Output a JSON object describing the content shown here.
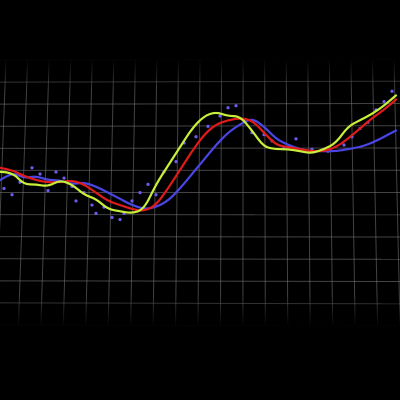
{
  "chart_data": {
    "type": "line",
    "title": "",
    "xlabel": "",
    "ylabel": "",
    "grid": true,
    "legend": "none",
    "xlim": [
      0,
      100
    ],
    "ylim": [
      0,
      100
    ],
    "colors": {
      "background": "#000000",
      "grid": "#7a7a7a",
      "points": "#6a5cf0"
    },
    "series": [
      {
        "color": "#c8f03a",
        "x": [
          0,
          3,
          6,
          9,
          12,
          15,
          18,
          21,
          24,
          27,
          30,
          33,
          36,
          39,
          42,
          45,
          48,
          51,
          54,
          57,
          60,
          63,
          66,
          69,
          72,
          75,
          78,
          81,
          84,
          87,
          90,
          93,
          96,
          99
        ],
        "y": [
          58,
          58,
          52,
          52,
          51,
          54,
          52,
          47,
          45,
          40,
          39,
          38,
          40,
          52,
          61,
          70,
          79,
          85,
          87,
          85,
          85,
          78,
          70,
          69,
          69,
          68,
          67,
          69,
          72,
          80,
          83,
          86,
          90,
          95
        ]
      },
      {
        "color": "#e11a1a",
        "x": [
          0,
          3,
          6,
          9,
          12,
          15,
          18,
          21,
          24,
          27,
          30,
          33,
          36,
          39,
          42,
          45,
          48,
          51,
          54,
          57,
          60,
          63,
          66,
          69,
          72,
          75,
          78,
          81,
          84,
          87,
          90,
          93,
          96,
          99
        ],
        "y": [
          60,
          59,
          56,
          54,
          53,
          53,
          54,
          52,
          48,
          44,
          42,
          40,
          39,
          42,
          50,
          59,
          68,
          76,
          81,
          83,
          84,
          83,
          77,
          71,
          70,
          69,
          68,
          68,
          70,
          74,
          79,
          84,
          88,
          93
        ]
      },
      {
        "color": "#4a46e6",
        "x": [
          0,
          3,
          6,
          9,
          12,
          15,
          18,
          21,
          24,
          27,
          30,
          33,
          36,
          39,
          42,
          45,
          48,
          51,
          54,
          57,
          60,
          63,
          66,
          69,
          72,
          75,
          78,
          81,
          84,
          87,
          90,
          93,
          96,
          99
        ],
        "y": [
          54,
          58,
          55,
          56,
          54,
          54,
          52,
          53,
          51,
          48,
          45,
          42,
          40,
          41,
          44,
          50,
          57,
          64,
          71,
          77,
          81,
          84,
          80,
          74,
          71,
          69,
          68,
          68,
          68,
          69,
          70,
          72,
          75,
          78
        ]
      }
    ],
    "scatter": {
      "color": "#6a5cf0",
      "x": [
        1,
        3,
        5,
        8,
        10,
        12,
        14,
        16,
        18,
        19,
        21,
        23,
        24,
        26,
        28,
        30,
        31,
        33,
        35,
        37,
        39,
        41,
        44,
        46,
        49,
        52,
        55,
        57,
        59,
        61,
        63,
        66,
        68,
        71,
        74,
        78,
        82,
        86,
        88,
        90,
        92,
        94,
        96,
        98
      ],
      "y": [
        50,
        47,
        53,
        60,
        57,
        49,
        58,
        55,
        51,
        44,
        48,
        42,
        38,
        41,
        36,
        35,
        38,
        44,
        48,
        52,
        47,
        58,
        63,
        72,
        75,
        80,
        85,
        89,
        90,
        83,
        77,
        76,
        73,
        70,
        74,
        69,
        68,
        71,
        75,
        79,
        82,
        88,
        92,
        97
      ]
    }
  }
}
